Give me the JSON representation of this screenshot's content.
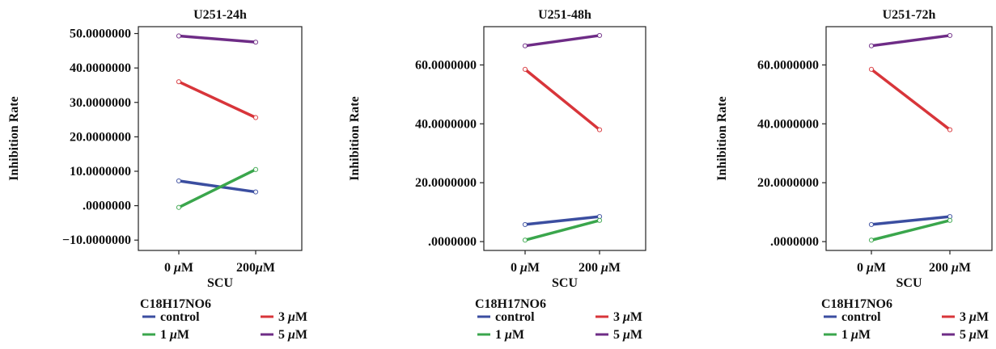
{
  "chart_data": [
    {
      "type": "line",
      "title": "U251-24h",
      "xlabel": "SCU",
      "ylabel": "Inhibition Rate",
      "categories": [
        "0 μM",
        "200μM"
      ],
      "ylim": [
        -13,
        52
      ],
      "yticks": [
        -10,
        0,
        10,
        20,
        30,
        40,
        50
      ],
      "ytick_labels": [
        "−10.0000000",
        ".0000000",
        "10.0000000",
        "20.0000000",
        "30.0000000",
        "40.0000000",
        "50.0000000"
      ],
      "legend_title": "C18H17NO6",
      "series": [
        {
          "name": "control",
          "values": [
            7.2,
            4.0
          ],
          "color": "#3b4ea0"
        },
        {
          "name": "1 μM",
          "values": [
            -0.5,
            10.5
          ],
          "color": "#3aa64c"
        },
        {
          "name": "3 μM",
          "values": [
            36.0,
            25.6
          ],
          "color": "#d8353a"
        },
        {
          "name": "5 μM",
          "values": [
            49.3,
            47.5
          ],
          "color": "#6e2c86"
        }
      ]
    },
    {
      "type": "line",
      "title": "U251-48h",
      "xlabel": "SCU",
      "ylabel": "Inhibition Rate",
      "categories": [
        "0 μM",
        "200 μM"
      ],
      "ylim": [
        -3,
        73
      ],
      "yticks": [
        0,
        20,
        40,
        60
      ],
      "ytick_labels": [
        ".0000000",
        "20.0000000",
        "40.0000000",
        "60.0000000"
      ],
      "legend_title": "C18H17NO6",
      "series": [
        {
          "name": "control",
          "values": [
            5.8,
            8.5
          ],
          "color": "#3b4ea0"
        },
        {
          "name": "1 μM",
          "values": [
            0.5,
            7.2
          ],
          "color": "#3aa64c"
        },
        {
          "name": "3 μM",
          "values": [
            58.5,
            38.0
          ],
          "color": "#d8353a"
        },
        {
          "name": "5 μM",
          "values": [
            66.5,
            70.0
          ],
          "color": "#6e2c86"
        }
      ]
    },
    {
      "type": "line",
      "title": "U251-72h",
      "xlabel": "SCU",
      "ylabel": "Inhibition Rate",
      "categories": [
        "0 μM",
        "200 μM"
      ],
      "ylim": [
        -3,
        73
      ],
      "yticks": [
        0,
        20,
        40,
        60
      ],
      "ytick_labels": [
        ".0000000",
        "20.0000000",
        "40.0000000",
        "60.0000000"
      ],
      "legend_title": "C18H17NO6",
      "series": [
        {
          "name": "control",
          "values": [
            5.8,
            8.5
          ],
          "color": "#3b4ea0"
        },
        {
          "name": "1 μM",
          "values": [
            0.5,
            7.2
          ],
          "color": "#3aa64c"
        },
        {
          "name": "3 μM",
          "values": [
            58.5,
            38.0
          ],
          "color": "#d8353a"
        },
        {
          "name": "5 μM",
          "values": [
            66.5,
            70.0
          ],
          "color": "#6e2c86"
        }
      ]
    }
  ]
}
